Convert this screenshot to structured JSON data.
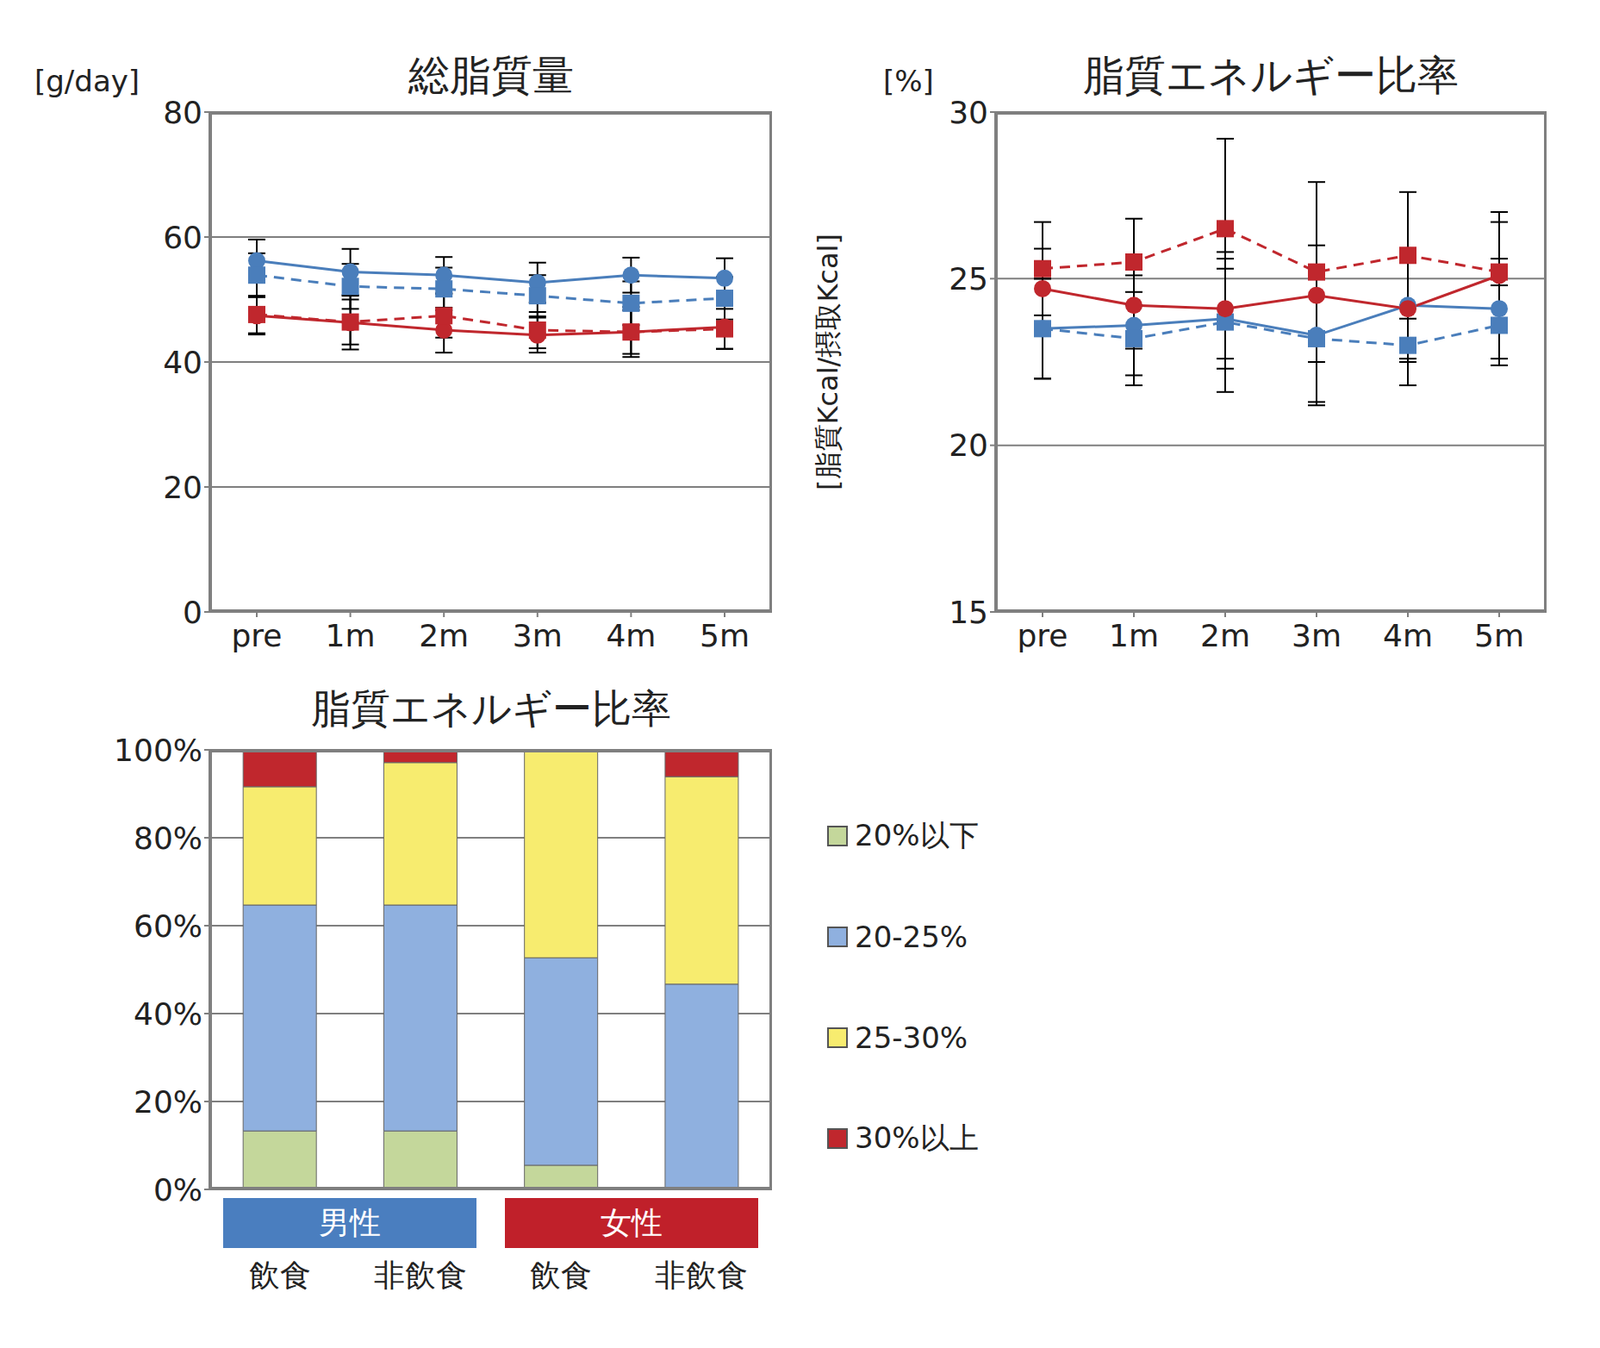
{
  "chart_data": [
    {
      "type": "line",
      "title": "総脂質量",
      "y_unit": "[g/day]",
      "categories": [
        "pre",
        "1m",
        "2m",
        "3m",
        "4m",
        "5m"
      ],
      "ylim": [
        0,
        80
      ],
      "yticks": [
        0,
        20,
        40,
        60,
        80
      ],
      "grid": true,
      "series": [
        {
          "color": "#4a7ebb",
          "marker": "circle",
          "line_style": "solid",
          "values": [
            56.2,
            54.4,
            53.9,
            52.7,
            53.9,
            53.4
          ],
          "errors": [
            3.4,
            3.7,
            2.9,
            3.2,
            2.8,
            3.2
          ]
        },
        {
          "color": "#4a7ebb",
          "marker": "square",
          "line_style": "dashed",
          "values": [
            53.9,
            52.1,
            51.7,
            50.6,
            49.4,
            50.2
          ],
          "errors": [
            3.5,
            3.6,
            3.4,
            3.3,
            3.5,
            3.4
          ]
        },
        {
          "color": "#c0272d",
          "marker": "circle",
          "line_style": "solid",
          "values": [
            47.4,
            46.3,
            45.1,
            44.3,
            44.8,
            45.6
          ],
          "errors": [
            3.0,
            4.3,
            3.6,
            2.8,
            4.0,
            3.5
          ]
        },
        {
          "color": "#c0272d",
          "marker": "square",
          "line_style": "dashed",
          "values": [
            47.6,
            46.4,
            47.4,
            45.1,
            44.8,
            45.3
          ],
          "errors": [
            3.0,
            3.6,
            3.5,
            2.9,
            3.5,
            3.2
          ]
        }
      ]
    },
    {
      "type": "line",
      "title": "脂質エネルギー比率",
      "y_unit": "[%]",
      "ylabel": "[脂質Kcal/摂取Kcal]",
      "categories": [
        "pre",
        "1m",
        "2m",
        "3m",
        "4m",
        "5m"
      ],
      "ylim": [
        15,
        30
      ],
      "yticks": [
        15,
        20,
        25,
        30
      ],
      "grid": true,
      "series": [
        {
          "color": "#4a7ebb",
          "marker": "circle",
          "line_style": "solid",
          "values": [
            23.5,
            23.6,
            23.8,
            23.3,
            24.2,
            24.1
          ],
          "errors": [
            1.5,
            1.5,
            1.5,
            2.0,
            1.7,
            1.5
          ]
        },
        {
          "color": "#4a7ebb",
          "marker": "square",
          "line_style": "dashed",
          "values": [
            23.5,
            23.2,
            23.7,
            23.2,
            23.0,
            23.6
          ],
          "errors": [
            1.5,
            1.4,
            2.1,
            2.0,
            1.2,
            1.2
          ]
        },
        {
          "color": "#c0272d",
          "marker": "circle",
          "line_style": "solid",
          "values": [
            24.7,
            24.2,
            24.1,
            24.5,
            24.1,
            25.1
          ],
          "errors": [
            1.2,
            1.3,
            1.5,
            1.5,
            1.5,
            1.6
          ]
        },
        {
          "color": "#c0272d",
          "marker": "square",
          "line_style": "dashed",
          "values": [
            25.3,
            25.5,
            26.5,
            25.2,
            25.7,
            25.2
          ],
          "errors": [
            1.4,
            1.3,
            2.7,
            2.7,
            1.9,
            1.8
          ]
        }
      ]
    },
    {
      "type": "bar",
      "stacked": true,
      "title": "脂質エネルギー比率",
      "categories": [
        "飲食",
        "非飲食",
        "飲食",
        "非飲食"
      ],
      "groups": [
        {
          "label": "男性",
          "color": "#4a7ebf",
          "span": 2
        },
        {
          "label": "女性",
          "color": "#c0202a",
          "span": 2
        }
      ],
      "ylim": [
        0,
        100
      ],
      "yticks": [
        {
          "value": 0,
          "label": "0%"
        },
        {
          "value": 20,
          "label": "20%"
        },
        {
          "value": 40,
          "label": "40%"
        },
        {
          "value": 60,
          "label": "60%"
        },
        {
          "value": 80,
          "label": "80%"
        },
        {
          "value": 100,
          "label": "100%"
        }
      ],
      "grid": true,
      "legend": "right",
      "series": [
        {
          "name": "20%以下",
          "color": "#c4d79b",
          "values": [
            13.3,
            13.3,
            5.5,
            0
          ]
        },
        {
          "name": "20-25%",
          "color": "#8fb0df",
          "values": [
            51.4,
            51.4,
            47.2,
            46.7
          ]
        },
        {
          "name": "25-30%",
          "color": "#f7ec6f",
          "values": [
            26.9,
            32.4,
            47.3,
            47.2
          ]
        },
        {
          "name": "30%以上",
          "color": "#c0272d",
          "values": [
            8.4,
            2.9,
            0,
            6.1
          ]
        }
      ]
    }
  ]
}
